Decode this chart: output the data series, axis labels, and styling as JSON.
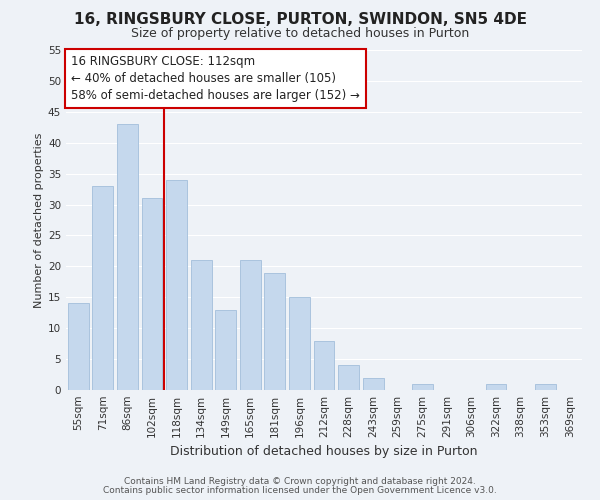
{
  "title": "16, RINGSBURY CLOSE, PURTON, SWINDON, SN5 4DE",
  "subtitle": "Size of property relative to detached houses in Purton",
  "xlabel": "Distribution of detached houses by size in Purton",
  "ylabel": "Number of detached properties",
  "bar_labels": [
    "55sqm",
    "71sqm",
    "86sqm",
    "102sqm",
    "118sqm",
    "134sqm",
    "149sqm",
    "165sqm",
    "181sqm",
    "196sqm",
    "212sqm",
    "228sqm",
    "243sqm",
    "259sqm",
    "275sqm",
    "291sqm",
    "306sqm",
    "322sqm",
    "338sqm",
    "353sqm",
    "369sqm"
  ],
  "bar_values": [
    14,
    33,
    43,
    31,
    34,
    21,
    13,
    21,
    19,
    15,
    8,
    4,
    2,
    0,
    1,
    0,
    0,
    1,
    0,
    1,
    0
  ],
  "bar_color": "#c5d8ed",
  "bar_edge_color": "#aac4de",
  "vline_color": "#cc0000",
  "annotation_box_text": "16 RINGSBURY CLOSE: 112sqm\n← 40% of detached houses are smaller (105)\n58% of semi-detached houses are larger (152) →",
  "footer_line1": "Contains HM Land Registry data © Crown copyright and database right 2024.",
  "footer_line2": "Contains public sector information licensed under the Open Government Licence v3.0.",
  "title_fontsize": 11,
  "subtitle_fontsize": 9,
  "ylabel_fontsize": 8,
  "xlabel_fontsize": 9,
  "tick_fontsize": 7.5,
  "annotation_fontsize": 8.5,
  "footer_fontsize": 6.5,
  "ylim": [
    0,
    55
  ],
  "yticks": [
    0,
    5,
    10,
    15,
    20,
    25,
    30,
    35,
    40,
    45,
    50,
    55
  ],
  "background_color": "#eef2f7",
  "grid_color": "#ffffff",
  "vline_bar_index": 3.5
}
